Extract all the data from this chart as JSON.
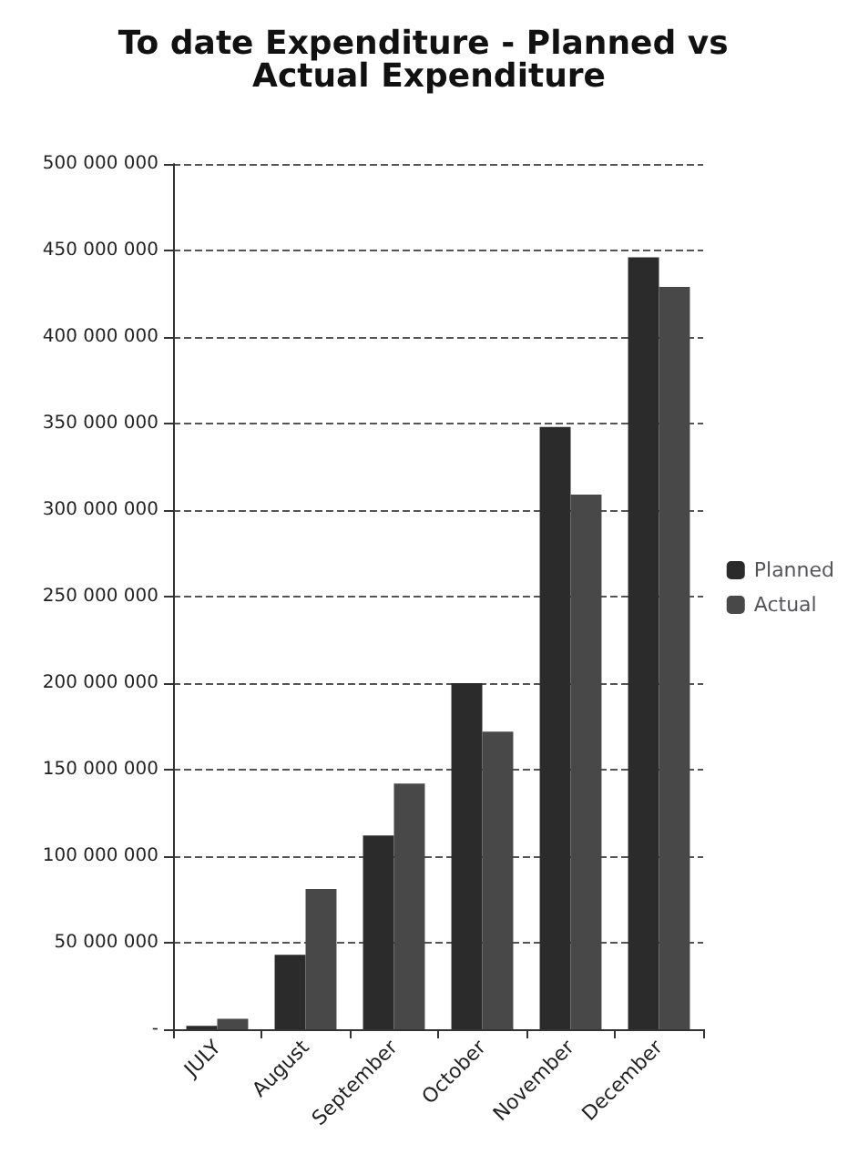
{
  "chart_data": {
    "type": "bar",
    "title": "To date Expenditure - Planned vs Actual Expenditure",
    "categories": [
      "JULY",
      "August",
      "September",
      "October",
      "November",
      "December"
    ],
    "series": [
      {
        "name": "Planned",
        "color": "#2b2b2b",
        "values": [
          2000000,
          43000000,
          112000000,
          200000000,
          348000000,
          446000000
        ]
      },
      {
        "name": "Actual",
        "color": "#484848",
        "values": [
          6000000,
          81000000,
          142000000,
          172000000,
          309000000,
          429000000
        ]
      }
    ],
    "ylim": [
      0,
      500000000
    ],
    "yticks": [
      {
        "value": 0,
        "label": "-"
      },
      {
        "value": 50000000,
        "label": "50 000 000"
      },
      {
        "value": 100000000,
        "label": "100 000 000"
      },
      {
        "value": 150000000,
        "label": "150 000 000"
      },
      {
        "value": 200000000,
        "label": "200 000 000"
      },
      {
        "value": 250000000,
        "label": "250 000 000"
      },
      {
        "value": 300000000,
        "label": "300 000 000"
      },
      {
        "value": 350000000,
        "label": "350 000 000"
      },
      {
        "value": 400000000,
        "label": "400 000 000"
      },
      {
        "value": 450000000,
        "label": "450 000 000"
      },
      {
        "value": 500000000,
        "label": "500 000 000"
      }
    ],
    "grid": "y",
    "legend": "right"
  }
}
